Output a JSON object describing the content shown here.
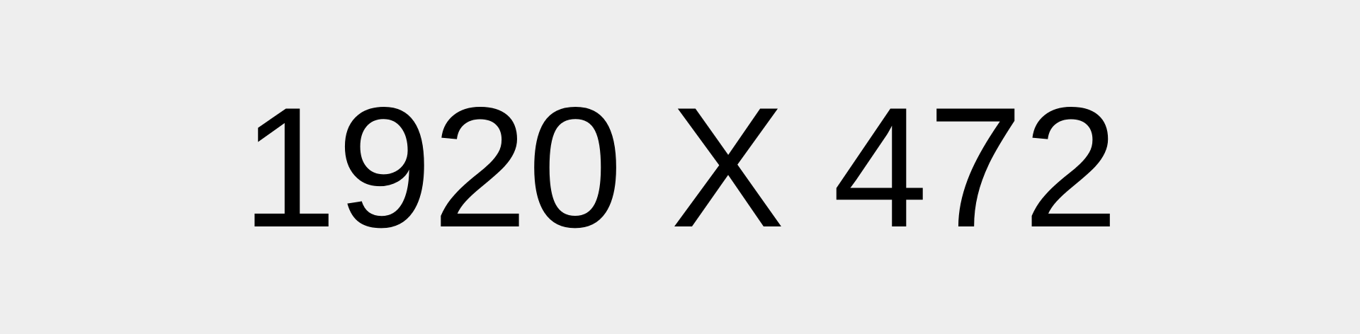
{
  "placeholder": {
    "label": "1920 X 472",
    "background_color": "#eeeeee",
    "text_color": "#000000"
  }
}
